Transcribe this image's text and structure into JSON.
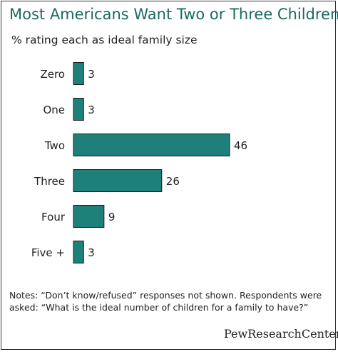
{
  "header": {
    "title": "Most Americans Want Two or Three Children",
    "subtitle": "% rating each as ideal family size"
  },
  "chart_data": {
    "type": "bar",
    "orientation": "horizontal",
    "title": "Most Americans Want Two or Three Children",
    "subtitle": "% rating each as ideal family size",
    "categories": [
      "Zero",
      "One",
      "Two",
      "Three",
      "Four",
      "Five +"
    ],
    "values": [
      3,
      3,
      46,
      26,
      9,
      3
    ],
    "data_labels": [
      "3",
      "3",
      "46",
      "26",
      "9",
      "3"
    ],
    "grid": false,
    "legend": "none",
    "bar_color": "#1e8078"
  },
  "footer": {
    "notes": "Notes: “Don’t know/refused” responses not shown. Respondents were asked: “What is the ideal number of children for a family to have?”",
    "source_logo": "PewResearchCenter"
  }
}
